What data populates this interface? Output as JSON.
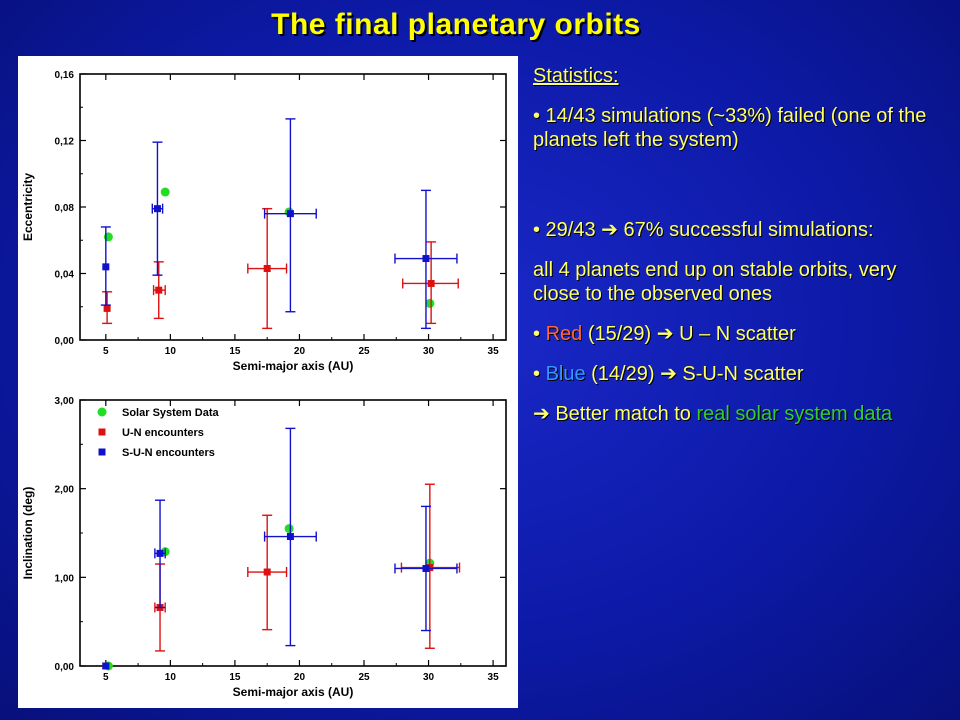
{
  "slide": {
    "title": "The final planetary orbits"
  },
  "statistics": {
    "heading": "Statistics:",
    "failed": "• 14/43 simulations (~33%) failed (one of the planets left the system)",
    "success": "• 29/43 ➔ 67% successful simulations:",
    "stable": "all 4 planets end up on stable orbits, very close to the observed ones",
    "red_bullet": "• ",
    "red_word": "Red",
    "red_rest": " (15/29)  ➔ U – N scatter",
    "blue_bullet": "• ",
    "blue_word": "Blue",
    "blue_rest": " (14/29) ➔ S-U-N scatter",
    "better_prefix": "➔ Better match to ",
    "better_green": "real solar system data"
  },
  "chart_data": [
    {
      "type": "scatter",
      "xlabel": "Semi-major axis (AU)",
      "ylabel": "Eccentricity",
      "xlim": [
        3,
        36
      ],
      "ylim": [
        0,
        0.16
      ],
      "xticks": [
        5,
        10,
        15,
        20,
        25,
        30,
        35
      ],
      "xtick_labels": [
        "5",
        "10",
        "15",
        "20",
        "25",
        "30",
        "35"
      ],
      "yticks": [
        0,
        0.04,
        0.08,
        0.12,
        0.16
      ],
      "ytick_labels": [
        "0,00",
        "0,04",
        "0,08",
        "0,12",
        "0,16"
      ],
      "series": [
        {
          "color": "#22dd22",
          "marker": "circle",
          "points": [
            {
              "x": 5.2,
              "y": 0.062
            },
            {
              "x": 9.6,
              "y": 0.089
            },
            {
              "x": 19.2,
              "y": 0.077
            },
            {
              "x": 30.1,
              "y": 0.022
            }
          ]
        },
        {
          "color": "#dd1111",
          "marker": "square",
          "points": [
            {
              "x": 5.1,
              "y": 0.019,
              "ylow": 0.01,
              "yhigh": 0.029,
              "xlow": 4.9,
              "xhigh": 5.3
            },
            {
              "x": 9.1,
              "y": 0.03,
              "ylow": 0.013,
              "yhigh": 0.047,
              "xlow": 8.7,
              "xhigh": 9.6
            },
            {
              "x": 17.5,
              "y": 0.043,
              "ylow": 0.007,
              "yhigh": 0.079,
              "xlow": 16.0,
              "xhigh": 19.0
            },
            {
              "x": 30.2,
              "y": 0.034,
              "ylow": 0.01,
              "yhigh": 0.059,
              "xlow": 28.0,
              "xhigh": 32.3
            }
          ]
        },
        {
          "color": "#1111cc",
          "marker": "square",
          "points": [
            {
              "x": 5.0,
              "y": 0.044,
              "ylow": 0.021,
              "yhigh": 0.068,
              "xlow": 4.8,
              "xhigh": 5.2
            },
            {
              "x": 9.0,
              "y": 0.079,
              "ylow": 0.039,
              "yhigh": 0.119,
              "xlow": 8.6,
              "xhigh": 9.4
            },
            {
              "x": 19.3,
              "y": 0.076,
              "ylow": 0.017,
              "yhigh": 0.133,
              "xlow": 17.3,
              "xhigh": 21.3
            },
            {
              "x": 29.8,
              "y": 0.049,
              "ylow": 0.007,
              "yhigh": 0.09,
              "xlow": 27.4,
              "xhigh": 32.2
            }
          ]
        }
      ]
    },
    {
      "type": "scatter",
      "xlabel": "Semi-major axis (AU)",
      "ylabel": "Inclination (deg)",
      "xlim": [
        3,
        36
      ],
      "ylim": [
        0,
        3
      ],
      "xticks": [
        5,
        10,
        15,
        20,
        25,
        30,
        35
      ],
      "xtick_labels": [
        "5",
        "10",
        "15",
        "20",
        "25",
        "30",
        "35"
      ],
      "yticks": [
        0,
        1,
        2,
        3
      ],
      "ytick_labels": [
        "0,00",
        "1,00",
        "2,00",
        "3,00"
      ],
      "legend_position": "top-left",
      "series": [
        {
          "name": "Solar System Data",
          "color": "#22dd22",
          "marker": "circle",
          "points": [
            {
              "x": 5.2,
              "y": 0.0
            },
            {
              "x": 9.6,
              "y": 1.29
            },
            {
              "x": 19.2,
              "y": 1.55
            },
            {
              "x": 30.1,
              "y": 1.16
            }
          ]
        },
        {
          "name": "U-N    encounters",
          "color": "#dd1111",
          "marker": "square",
          "points": [
            {
              "x": 5.0,
              "y": 0.0,
              "ylow": 0.0,
              "yhigh": 0.0,
              "xlow": 4.9,
              "xhigh": 5.1
            },
            {
              "x": 9.2,
              "y": 0.66,
              "ylow": 0.17,
              "yhigh": 1.15,
              "xlow": 8.8,
              "xhigh": 9.6
            },
            {
              "x": 17.5,
              "y": 1.06,
              "ylow": 0.41,
              "yhigh": 1.7,
              "xlow": 16.0,
              "xhigh": 19.0
            },
            {
              "x": 30.1,
              "y": 1.11,
              "ylow": 0.2,
              "yhigh": 2.05,
              "xlow": 27.9,
              "xhigh": 32.4
            }
          ]
        },
        {
          "name": "S-U-N  encounters",
          "color": "#1111cc",
          "marker": "square",
          "points": [
            {
              "x": 5.0,
              "y": 0.0,
              "ylow": 0.0,
              "yhigh": 0.0,
              "xlow": 4.9,
              "xhigh": 5.1
            },
            {
              "x": 9.2,
              "y": 1.27,
              "ylow": 0.66,
              "yhigh": 1.87,
              "xlow": 8.8,
              "xhigh": 9.6
            },
            {
              "x": 19.3,
              "y": 1.46,
              "ylow": 0.23,
              "yhigh": 2.68,
              "xlow": 17.3,
              "xhigh": 21.3
            },
            {
              "x": 29.8,
              "y": 1.1,
              "ylow": 0.4,
              "yhigh": 1.8,
              "xlow": 27.4,
              "xhigh": 32.2
            }
          ]
        }
      ]
    }
  ]
}
